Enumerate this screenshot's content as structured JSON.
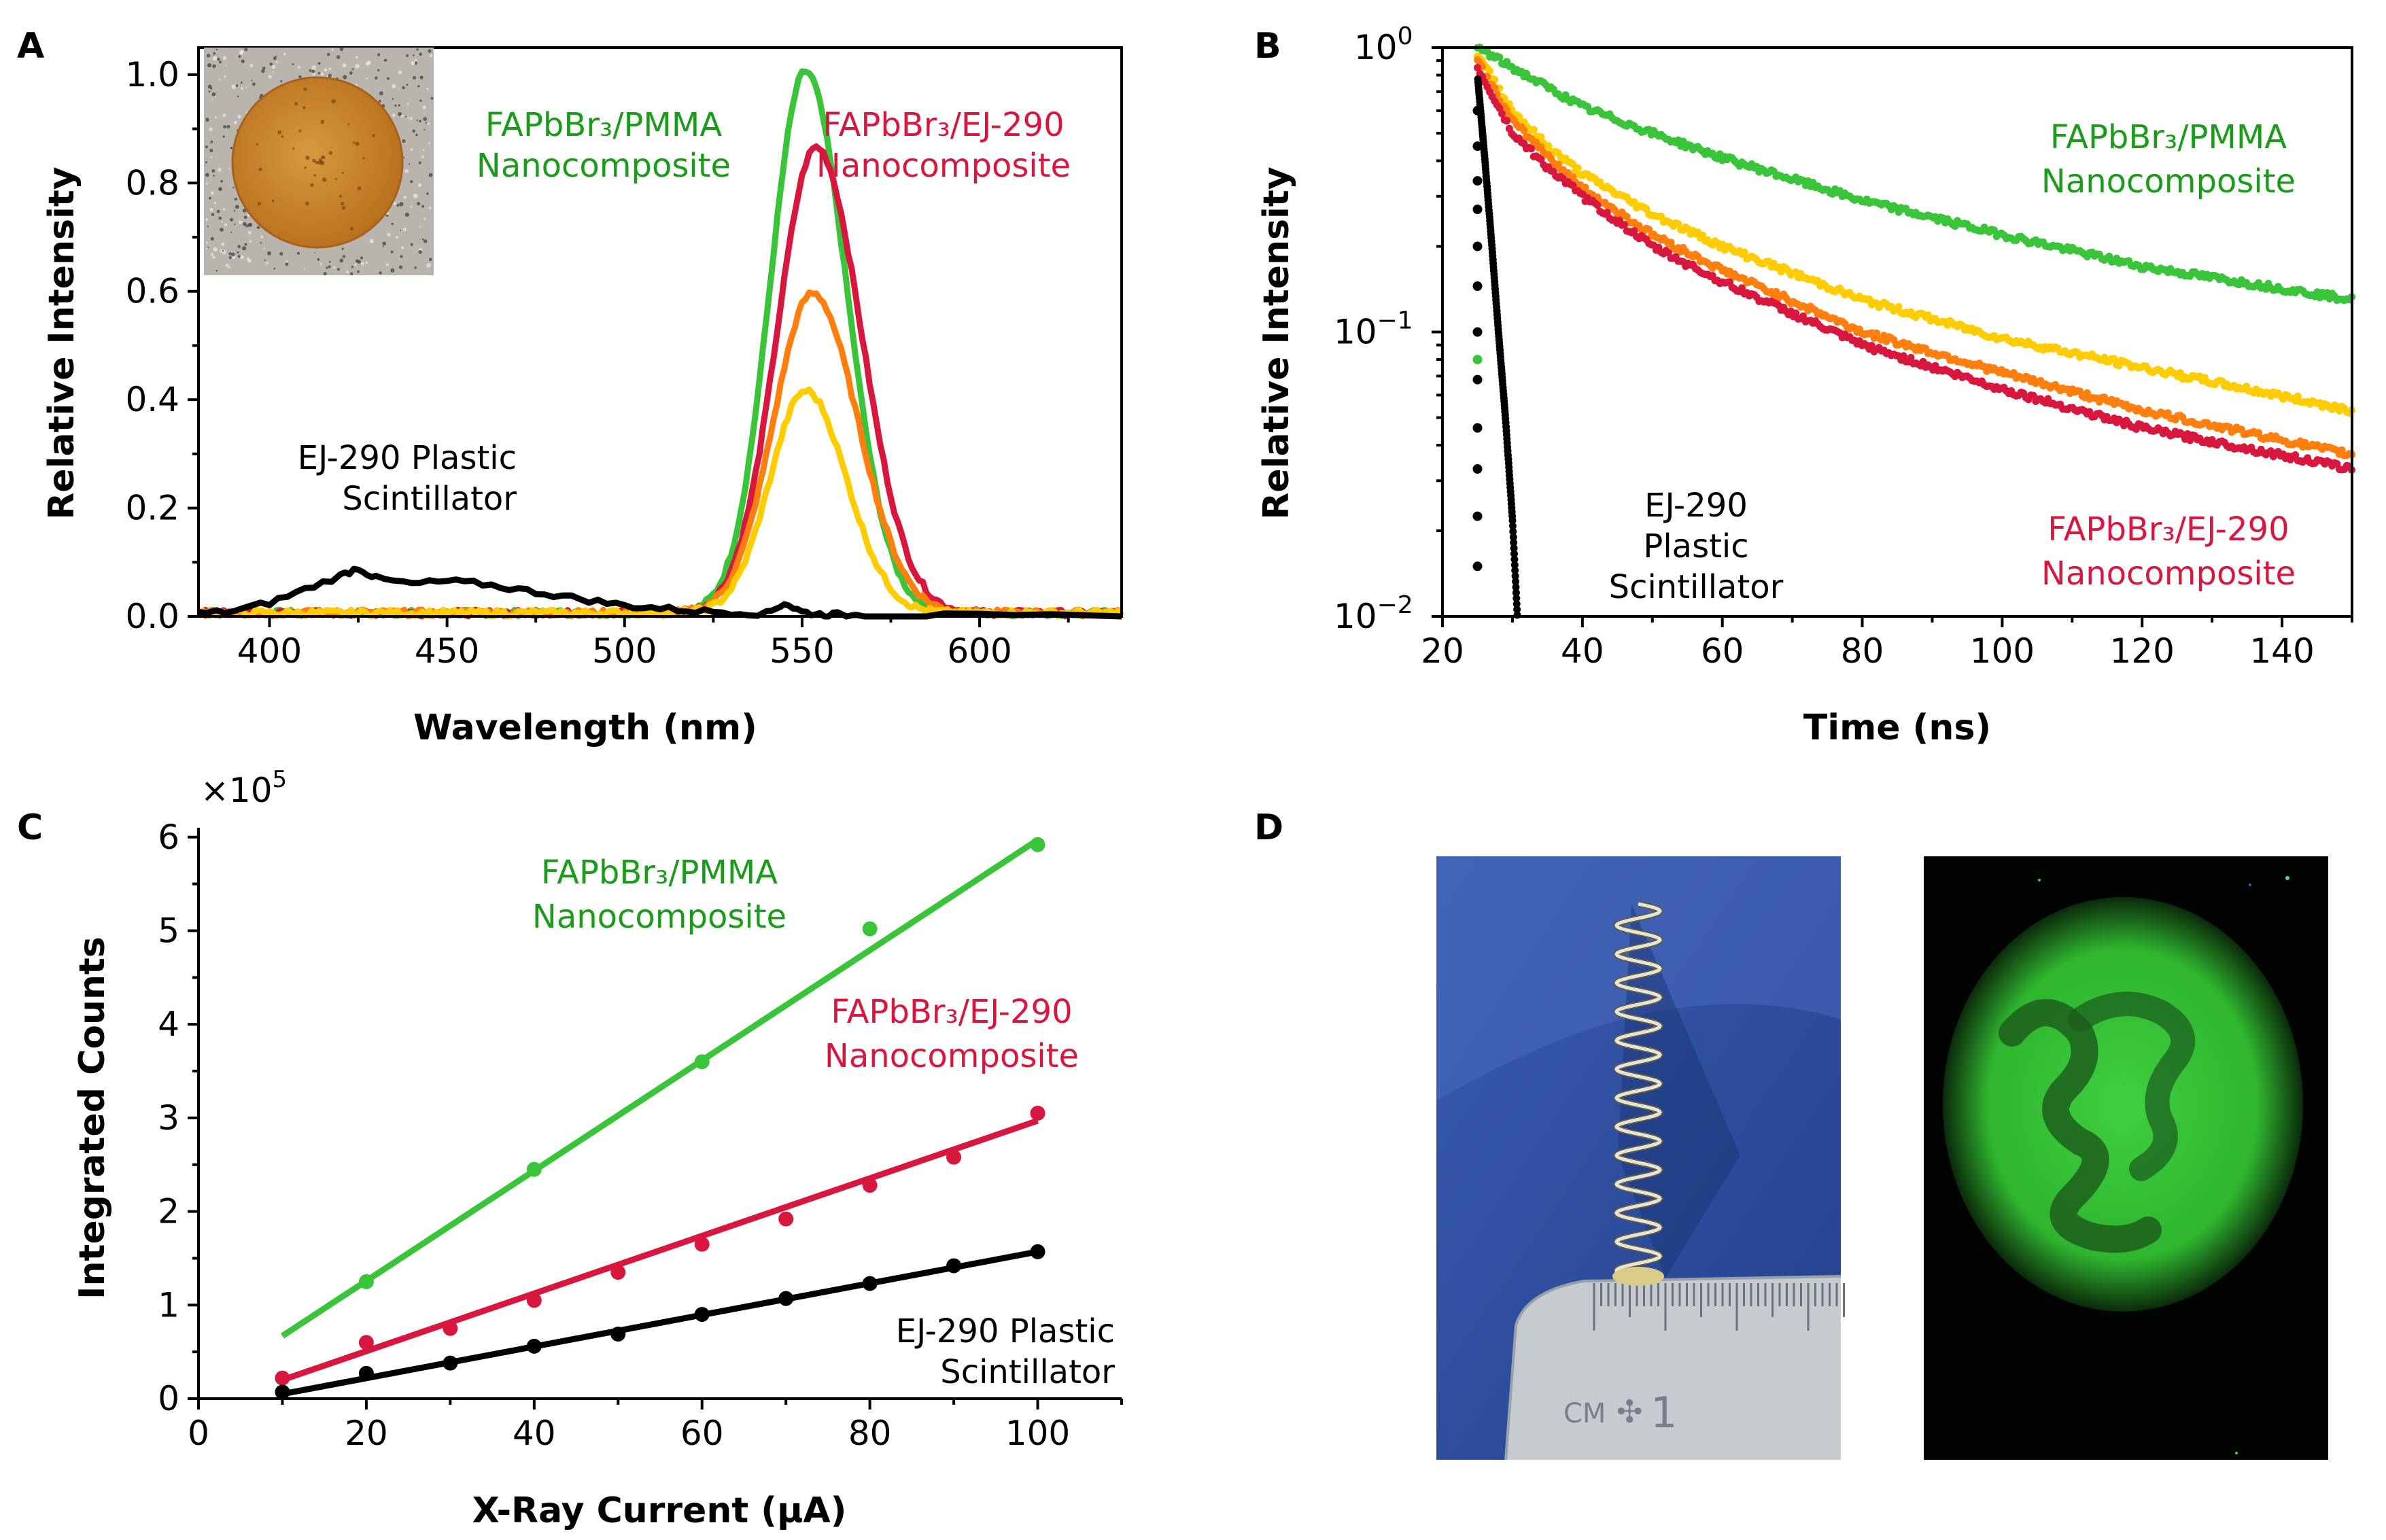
{
  "colors": {
    "green": "#39c43a",
    "crimson": "#d8173f",
    "orange": "#ff7f0e",
    "yellow": "#ffcc00",
    "black": "#000000",
    "green_text": "#1a9c1a"
  },
  "chart_data": [
    {
      "panel": "A",
      "type": "line",
      "xlabel": "Wavelength (nm)",
      "ylabel": "Relative Intensity",
      "xlim": [
        380,
        640
      ],
      "ylim": [
        0,
        1.05
      ],
      "xticks": [
        "400",
        "450",
        "500",
        "550",
        "600"
      ],
      "xtick_values": [
        400,
        450,
        500,
        550,
        600
      ],
      "yticks": [
        "0.0",
        "0.2",
        "0.4",
        "0.6",
        "0.8",
        "1.0"
      ],
      "ytick_values": [
        0,
        0.2,
        0.4,
        0.6,
        0.8,
        1.0
      ],
      "series": [
        {
          "name": "FAPbBr3/PMMA",
          "color": "#39c43a",
          "peak_x": 551,
          "peak_y": 1.0,
          "sigma": 10
        },
        {
          "name": "FAPbBr3/EJ-290",
          "color": "#d8173f",
          "peak_x": 554,
          "peak_y": 0.86,
          "sigma": 11
        },
        {
          "name": "orange",
          "color": "#ff7f0e",
          "peak_x": 553,
          "peak_y": 0.59,
          "sigma": 11
        },
        {
          "name": "yellow",
          "color": "#ffcc00",
          "peak_x": 551,
          "peak_y": 0.41,
          "sigma": 10
        },
        {
          "name": "EJ-290 Plastic Scintillator",
          "color": "#000000",
          "x": [
            380,
            390,
            400,
            410,
            420,
            425,
            430,
            440,
            450,
            460,
            470,
            480,
            490,
            500,
            510,
            520,
            530,
            540,
            545,
            550,
            555,
            560,
            570,
            580,
            600,
            640
          ],
          "y": [
            0.005,
            0.01,
            0.025,
            0.05,
            0.075,
            0.09,
            0.07,
            0.06,
            0.065,
            0.06,
            0.05,
            0.04,
            0.03,
            0.02,
            0.015,
            0.01,
            0.008,
            0.005,
            0.025,
            0.008,
            0.004,
            0.003,
            0.002,
            0.002,
            0.0,
            0.0
          ]
        }
      ],
      "annotations": {
        "pmma_line1": "FAPbBr₃/PMMA",
        "pmma_line2": "Nanocomposite",
        "ej_line1": "FAPbBr₃/EJ-290",
        "ej_line2": "Nanocomposite",
        "plastic_line1": "EJ-290 Plastic",
        "plastic_line2": "Scintillator"
      }
    },
    {
      "panel": "B",
      "type": "scatter",
      "xlabel": "Time (ns)",
      "ylabel": "Relative Intensity",
      "xlim": [
        20,
        150
      ],
      "ylim": [
        0.01,
        1
      ],
      "yscale": "log",
      "xticks": [
        "20",
        "40",
        "60",
        "80",
        "100",
        "120",
        "140"
      ],
      "xtick_values": [
        20,
        40,
        60,
        80,
        100,
        120,
        140
      ],
      "yticks": [
        {
          "base": "10",
          "exp": "0"
        },
        {
          "base": "10",
          "exp": "−1"
        },
        {
          "base": "10",
          "exp": "−2"
        }
      ],
      "ytick_values": [
        1,
        0.1,
        0.01
      ],
      "series": [
        {
          "name": "FAPbBr3/PMMA",
          "color": "#39c43a",
          "t": [
            25,
            30,
            40,
            50,
            60,
            80,
            100,
            120,
            150
          ],
          "y": [
            1.0,
            0.85,
            0.62,
            0.5,
            0.41,
            0.29,
            0.22,
            0.17,
            0.13
          ]
        },
        {
          "name": "yellow",
          "color": "#ffcc00",
          "t": [
            25,
            30,
            35,
            40,
            50,
            60,
            80,
            100,
            120,
            150
          ],
          "y": [
            0.95,
            0.6,
            0.45,
            0.36,
            0.26,
            0.2,
            0.13,
            0.095,
            0.075,
            0.053
          ]
        },
        {
          "name": "orange",
          "color": "#ff7f0e",
          "t": [
            25,
            30,
            35,
            40,
            50,
            60,
            80,
            100,
            120,
            150
          ],
          "y": [
            0.9,
            0.55,
            0.42,
            0.32,
            0.22,
            0.165,
            0.1,
            0.072,
            0.053,
            0.037
          ]
        },
        {
          "name": "FAPbBr3/EJ-290",
          "color": "#d8173f",
          "t": [
            25,
            30,
            35,
            40,
            50,
            60,
            80,
            100,
            120,
            150
          ],
          "y": [
            0.85,
            0.5,
            0.38,
            0.3,
            0.2,
            0.15,
            0.09,
            0.063,
            0.046,
            0.033
          ]
        },
        {
          "name": "EJ-290 Plastic Scintillator",
          "color": "#000000",
          "t": [
            25,
            26,
            27,
            28,
            29,
            30,
            30.7
          ],
          "y": [
            0.8,
            0.42,
            0.21,
            0.1,
            0.05,
            0.022,
            0.01
          ]
        }
      ],
      "annotations": {
        "pmma_line1": "FAPbBr₃/PMMA",
        "pmma_line2": "Nanocomposite",
        "ej_line1": "FAPbBr₃/EJ-290",
        "ej_line2": "Nanocomposite",
        "plastic_line1": "EJ-290",
        "plastic_line2": "Plastic",
        "plastic_line3": "Scintillator"
      }
    },
    {
      "panel": "C",
      "type": "scatter",
      "xlabel": "X-Ray Current (μA)",
      "ylabel": "Integrated Counts",
      "multiplier": "×10",
      "multiplier_exp": "5",
      "xlim": [
        0,
        110
      ],
      "ylim": [
        0,
        6.1
      ],
      "xticks": [
        "0",
        "20",
        "40",
        "60",
        "80",
        "100"
      ],
      "xtick_values": [
        0,
        20,
        40,
        60,
        80,
        100
      ],
      "yticks": [
        "0",
        "1",
        "2",
        "3",
        "4",
        "5",
        "6"
      ],
      "ytick_values": [
        0,
        1,
        2,
        3,
        4,
        5,
        6
      ],
      "series": [
        {
          "name": "FAPbBr3/PMMA",
          "color": "#39c43a",
          "x": [
            20,
            40,
            60,
            80,
            100
          ],
          "y": [
            1.25,
            2.45,
            3.6,
            5.02,
            5.92
          ],
          "fit": [
            [
              10,
              0.67
            ],
            [
              100,
              5.97
            ]
          ]
        },
        {
          "name": "FAPbBr3/EJ-290",
          "color": "#d8173f",
          "x": [
            10,
            20,
            30,
            40,
            50,
            60,
            70,
            80,
            90,
            100
          ],
          "y": [
            0.22,
            0.6,
            0.75,
            1.05,
            1.35,
            1.65,
            1.92,
            2.28,
            2.58,
            3.05
          ],
          "fit": [
            [
              10,
              0.2
            ],
            [
              100,
              2.97
            ]
          ]
        },
        {
          "name": "EJ-290 Plastic Scintillator",
          "color": "#000000",
          "x": [
            10,
            20,
            30,
            40,
            50,
            60,
            70,
            80,
            90,
            100
          ],
          "y": [
            0.07,
            0.27,
            0.38,
            0.56,
            0.69,
            0.9,
            1.07,
            1.23,
            1.42,
            1.57
          ],
          "fit": [
            [
              10,
              0.05
            ],
            [
              100,
              1.57
            ]
          ]
        }
      ],
      "annotations": {
        "pmma_line1": "FAPbBr₃/PMMA",
        "pmma_line2": "Nanocomposite",
        "ej_line1": "FAPbBr₃/EJ-290",
        "ej_line2": "Nanocomposite",
        "plastic_line1": "EJ-290 Plastic",
        "plastic_line2": "Scintillator"
      }
    }
  ],
  "panel_letters": {
    "a": "A",
    "b": "B",
    "c": "C",
    "d": "D"
  },
  "photo_d_left": {
    "ruler_unit": "CM",
    "ruler_number": "1"
  }
}
